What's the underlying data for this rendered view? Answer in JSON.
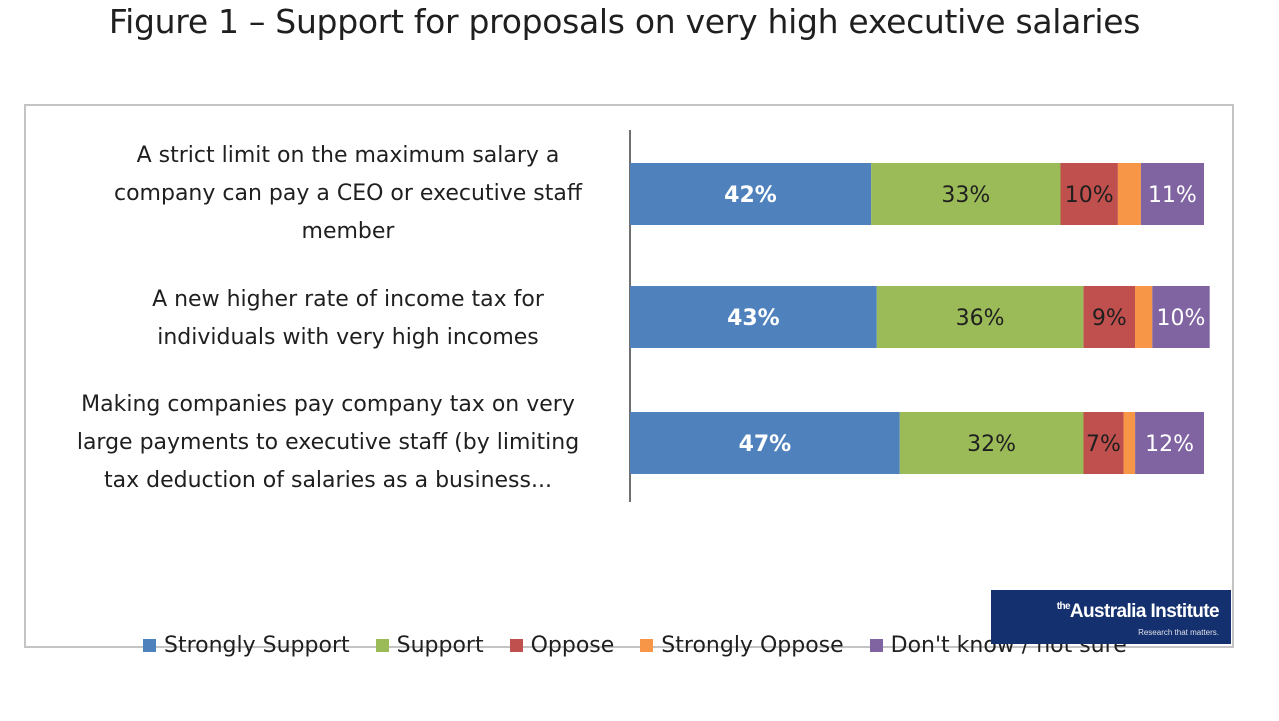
{
  "figure_title": "Figure 1 – Support for proposals on very high executive salaries",
  "logo": {
    "text": "Australia Institute",
    "prefix": "the",
    "tagline": "Research that matters."
  },
  "colors": {
    "strongly_support": "#4f81bd",
    "support": "#9bbb59",
    "oppose": "#c0504d",
    "strongly_oppose": "#f79646",
    "dont_know": "#8064a2"
  },
  "chart_data": {
    "type": "bar",
    "orientation": "horizontal",
    "stacked": true,
    "percent": true,
    "title": "",
    "xlim": [
      0,
      100
    ],
    "grid": false,
    "legend_position": "bottom",
    "categories": [
      "A strict limit on the maximum salary a company can pay a CEO or executive staff member",
      "A new higher rate of income tax for individuals with very high incomes",
      "Making companies pay company tax on very large payments to executive staff (by limiting tax deduction of salaries as a business..."
    ],
    "category_lines": [
      [
        "A strict limit on the maximum salary a",
        "company can pay a CEO or executive staff",
        "member"
      ],
      [
        "A new higher rate of income tax for",
        "individuals with very high incomes"
      ],
      [
        "Making companies pay company tax on very",
        "large payments to executive staff (by limiting",
        "tax deduction of salaries as a business..."
      ]
    ],
    "series": [
      {
        "name": "Strongly Support",
        "values": [
          42,
          43,
          47
        ],
        "labels": [
          "42%",
          "43%",
          "47%"
        ],
        "color": "#4f81bd",
        "label_color": "#ffffff",
        "label_bold": true
      },
      {
        "name": "Support",
        "values": [
          33,
          36,
          32
        ],
        "labels": [
          "33%",
          "36%",
          "32%"
        ],
        "color": "#9bbb59",
        "label_color": "#1f1f1f",
        "label_bold": false
      },
      {
        "name": "Oppose",
        "values": [
          10,
          9,
          7
        ],
        "labels": [
          "10%",
          "9%",
          "7%"
        ],
        "color": "#c0504d",
        "label_color": "#1f1f1f",
        "label_bold": false
      },
      {
        "name": "Strongly Oppose",
        "values": [
          4,
          3,
          2
        ],
        "labels": [
          "",
          "",
          ""
        ],
        "color": "#f79646",
        "label_color": "#1f1f1f",
        "label_bold": false
      },
      {
        "name": "Don't know / not sure",
        "values": [
          11,
          10,
          12
        ],
        "labels": [
          "11%",
          "10%",
          "12%"
        ],
        "color": "#8064a2",
        "label_color": "#ffffff",
        "label_bold": false
      }
    ]
  }
}
